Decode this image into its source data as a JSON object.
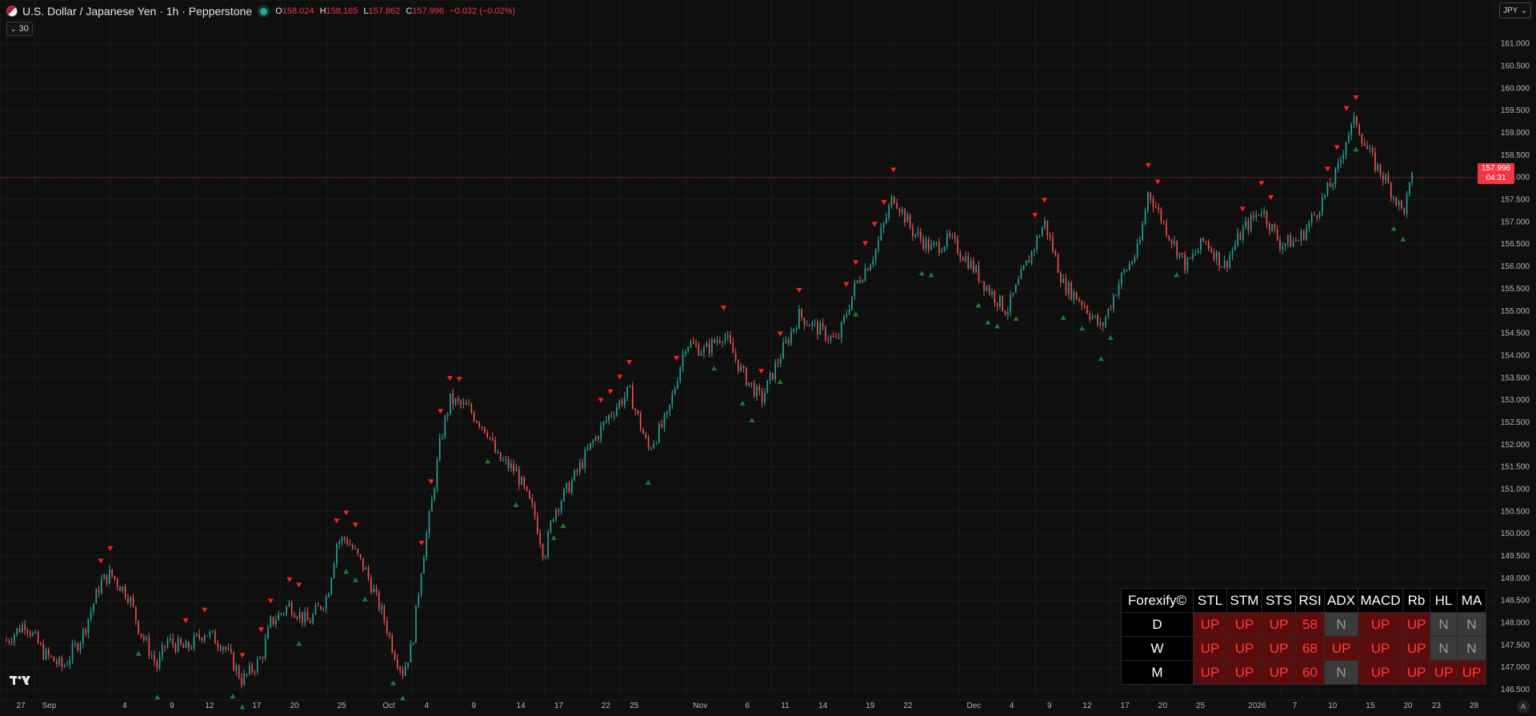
{
  "header": {
    "title": "U.S. Dollar / Japanese Yen · 1h · Pepperstone",
    "open_label": "O",
    "open": "158.024",
    "high_label": "H",
    "high": "158.165",
    "low_label": "L",
    "low": "157.862",
    "close_label": "C",
    "close": "157.996",
    "change": "−0.032 (−0.02%)"
  },
  "indicator_tag": "30",
  "currency_button": "JPY",
  "last_price": {
    "value": "157.996",
    "countdown": "04:31",
    "y_value": 157.996
  },
  "autoscale_button": "A",
  "colors": {
    "background": "#0f0f0f",
    "up": "#26a69a",
    "down": "#ef5350",
    "signal_sell": "#ff1f1f",
    "signal_buy": "#1e7a2e",
    "price_line": "#f23645"
  },
  "chart_data": {
    "type": "candlestick",
    "symbol": "USDJPY",
    "interval": "1h",
    "ylim": [
      146.5,
      161.3
    ],
    "y_ticks": [
      "161.000",
      "160.500",
      "160.000",
      "159.500",
      "159.000",
      "158.500",
      "158.000",
      "157.500",
      "157.000",
      "156.500",
      "156.000",
      "155.500",
      "155.000",
      "154.500",
      "154.000",
      "153.500",
      "153.000",
      "152.500",
      "152.000",
      "151.500",
      "151.000",
      "150.500",
      "150.000",
      "149.500",
      "149.000",
      "148.500",
      "148.000",
      "147.500",
      "147.000",
      "146.500"
    ],
    "x_ticks": [
      {
        "label": "27",
        "x": 0
      },
      {
        "label": "Sep",
        "x": 3
      },
      {
        "label": "4",
        "x": 11
      },
      {
        "label": "9",
        "x": 16
      },
      {
        "label": "12",
        "x": 20
      },
      {
        "label": "17",
        "x": 25
      },
      {
        "label": "20",
        "x": 29
      },
      {
        "label": "25",
        "x": 34
      },
      {
        "label": "Oct",
        "x": 39
      },
      {
        "label": "4",
        "x": 43
      },
      {
        "label": "9",
        "x": 48
      },
      {
        "label": "14",
        "x": 53
      },
      {
        "label": "17",
        "x": 57
      },
      {
        "label": "22",
        "x": 62
      },
      {
        "label": "25",
        "x": 65
      },
      {
        "label": "Nov",
        "x": 72
      },
      {
        "label": "6",
        "x": 77
      },
      {
        "label": "11",
        "x": 81
      },
      {
        "label": "14",
        "x": 85
      },
      {
        "label": "19",
        "x": 90
      },
      {
        "label": "22",
        "x": 94
      },
      {
        "label": "Dec",
        "x": 101
      },
      {
        "label": "4",
        "x": 105
      },
      {
        "label": "9",
        "x": 109
      },
      {
        "label": "12",
        "x": 113
      },
      {
        "label": "17",
        "x": 117
      },
      {
        "label": "20",
        "x": 121
      },
      {
        "label": "25",
        "x": 125
      },
      {
        "label": "2026",
        "x": 131
      },
      {
        "label": "7",
        "x": 135
      },
      {
        "label": "10",
        "x": 139
      },
      {
        "label": "15",
        "x": 143
      },
      {
        "label": "20",
        "x": 147
      },
      {
        "label": "23",
        "x": 150
      },
      {
        "label": "28",
        "x": 154
      }
    ],
    "price_path": [
      [
        0,
        147.6
      ],
      [
        2,
        148.0
      ],
      [
        4,
        147.3
      ],
      [
        6,
        147.0
      ],
      [
        8,
        147.7
      ],
      [
        10,
        148.9
      ],
      [
        11,
        149.1
      ],
      [
        13,
        148.6
      ],
      [
        14,
        147.9
      ],
      [
        16,
        147.0
      ],
      [
        17,
        147.6
      ],
      [
        19,
        147.4
      ],
      [
        21,
        147.8
      ],
      [
        23,
        147.5
      ],
      [
        25,
        146.7
      ],
      [
        27,
        147.2
      ],
      [
        28,
        148.0
      ],
      [
        30,
        148.4
      ],
      [
        32,
        148.0
      ],
      [
        34,
        148.6
      ],
      [
        35,
        149.8
      ],
      [
        36,
        149.9
      ],
      [
        38,
        149.2
      ],
      [
        40,
        148.1
      ],
      [
        41,
        147.4
      ],
      [
        42,
        146.9
      ],
      [
        43,
        147.5
      ],
      [
        44,
        149.3
      ],
      [
        45,
        150.6
      ],
      [
        46,
        152.1
      ],
      [
        47,
        153.0
      ],
      [
        49,
        152.8
      ],
      [
        51,
        152.3
      ],
      [
        52,
        151.7
      ],
      [
        54,
        151.4
      ],
      [
        56,
        150.4
      ],
      [
        57,
        149.5
      ],
      [
        58,
        150.5
      ],
      [
        60,
        151.2
      ],
      [
        62,
        152.0
      ],
      [
        64,
        152.7
      ],
      [
        66,
        153.2
      ],
      [
        68,
        151.9
      ],
      [
        70,
        152.6
      ],
      [
        72,
        154.3
      ],
      [
        74,
        154.1
      ],
      [
        76,
        154.5
      ],
      [
        78,
        153.6
      ],
      [
        80,
        153.0
      ],
      [
        82,
        154.0
      ],
      [
        84,
        154.9
      ],
      [
        86,
        154.6
      ],
      [
        88,
        154.3
      ],
      [
        90,
        155.6
      ],
      [
        92,
        156.3
      ],
      [
        94,
        157.6
      ],
      [
        96,
        156.8
      ],
      [
        98,
        156.4
      ],
      [
        100,
        156.6
      ],
      [
        102,
        156.1
      ],
      [
        104,
        155.5
      ],
      [
        106,
        155.0
      ],
      [
        108,
        156.0
      ],
      [
        110,
        157.0
      ],
      [
        112,
        155.6
      ],
      [
        114,
        155.2
      ],
      [
        116,
        154.6
      ],
      [
        118,
        155.7
      ],
      [
        120,
        156.4
      ],
      [
        121,
        157.7
      ],
      [
        123,
        156.8
      ],
      [
        125,
        156.0
      ],
      [
        127,
        156.6
      ],
      [
        129,
        156.0
      ],
      [
        131,
        156.8
      ],
      [
        133,
        157.3
      ],
      [
        135,
        156.5
      ],
      [
        137,
        156.6
      ],
      [
        139,
        157.3
      ],
      [
        141,
        158.1
      ],
      [
        142,
        158.9
      ],
      [
        143,
        159.3
      ],
      [
        144,
        158.7
      ],
      [
        145,
        158.3
      ],
      [
        146,
        158.0
      ],
      [
        147,
        157.6
      ],
      [
        148,
        157.2
      ],
      [
        149,
        158.0
      ]
    ],
    "sell_signals_x": [
      10,
      11,
      19,
      21,
      25,
      27,
      28,
      30,
      31,
      35,
      36,
      37,
      44,
      45,
      46,
      47,
      48,
      63,
      64,
      65,
      66,
      71,
      76,
      80,
      82,
      84,
      89,
      90,
      91,
      92,
      93,
      94,
      109,
      110,
      121,
      122,
      131,
      133,
      134,
      140,
      141,
      142,
      143
    ],
    "buy_signals_x": [
      14,
      16,
      24,
      25,
      31,
      36,
      37,
      38,
      41,
      42,
      51,
      54,
      58,
      59,
      68,
      75,
      78,
      79,
      82,
      90,
      97,
      98,
      103,
      104,
      105,
      107,
      112,
      114,
      116,
      117,
      124,
      143,
      147,
      148
    ],
    "last_x": 149,
    "x_max": 157
  },
  "forexify": {
    "title": "Forexify©",
    "columns": [
      "STL",
      "STM",
      "STS",
      "RSI",
      "ADX",
      "MACD",
      "Rb",
      "HL",
      "MA"
    ],
    "rows": [
      {
        "label": "D",
        "cells": [
          "UP",
          "UP",
          "UP",
          "58",
          "N",
          "UP",
          "UP",
          "N",
          "N"
        ]
      },
      {
        "label": "W",
        "cells": [
          "UP",
          "UP",
          "UP",
          "68",
          "UP",
          "UP",
          "UP",
          "N",
          "N"
        ]
      },
      {
        "label": "M",
        "cells": [
          "UP",
          "UP",
          "UP",
          "60",
          "N",
          "UP",
          "UP",
          "UP",
          "UP"
        ]
      }
    ]
  }
}
